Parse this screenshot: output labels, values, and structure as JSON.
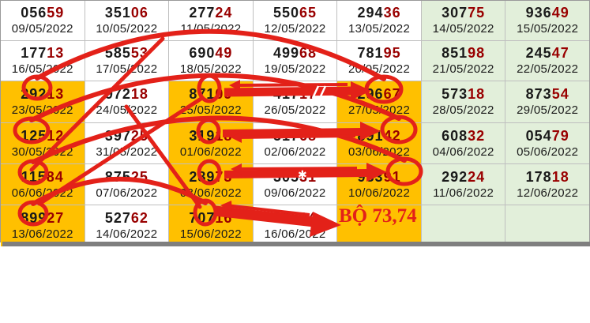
{
  "table": {
    "columns": 7,
    "rows": [
      {
        "cells": [
          {
            "num_black": "056",
            "num_red": "59",
            "date": "09/05/2022",
            "bg": "white"
          },
          {
            "num_black": "351",
            "num_red": "06",
            "date": "10/05/2022",
            "bg": "white"
          },
          {
            "num_black": "277",
            "num_red": "24",
            "date": "11/05/2022",
            "bg": "white"
          },
          {
            "num_black": "550",
            "num_red": "65",
            "date": "12/05/2022",
            "bg": "white"
          },
          {
            "num_black": "294",
            "num_red": "36",
            "date": "13/05/2022",
            "bg": "white"
          },
          {
            "num_black": "307",
            "num_red": "75",
            "date": "14/05/2022",
            "bg": "green"
          },
          {
            "num_black": "936",
            "num_red": "49",
            "date": "15/05/2022",
            "bg": "green"
          }
        ]
      },
      {
        "cells": [
          {
            "num_black": "177",
            "num_red": "13",
            "date": "16/05/2022",
            "bg": "white"
          },
          {
            "num_black": "585",
            "num_red": "53",
            "date": "17/05/2022",
            "bg": "white"
          },
          {
            "num_black": "690",
            "num_red": "49",
            "date": "18/05/2022",
            "bg": "white"
          },
          {
            "num_black": "499",
            "num_red": "68",
            "date": "19/05/2022",
            "bg": "white"
          },
          {
            "num_black": "781",
            "num_red": "95",
            "date": "20/05/2022",
            "bg": "white"
          },
          {
            "num_black": "851",
            "num_red": "98",
            "date": "21/05/2022",
            "bg": "green"
          },
          {
            "num_black": "245",
            "num_red": "47",
            "date": "22/05/2022",
            "bg": "green"
          }
        ]
      },
      {
        "cells": [
          {
            "num_black": "292",
            "num_red": "13",
            "date": "23/05/2022",
            "bg": "orange"
          },
          {
            "num_black": "972",
            "num_red": "18",
            "date": "24/05/2022",
            "bg": "white"
          },
          {
            "num_black": "871",
            "num_red": "09",
            "date": "25/05/2022",
            "bg": "orange"
          },
          {
            "num_black": "417",
            "num_red": "17",
            "date": "26/05/2022",
            "bg": "white"
          },
          {
            "num_black": "296",
            "num_red": "67",
            "date": "27/05/2022",
            "bg": "orange"
          },
          {
            "num_black": "573",
            "num_red": "18",
            "date": "28/05/2022",
            "bg": "green"
          },
          {
            "num_black": "873",
            "num_red": "54",
            "date": "29/05/2022",
            "bg": "green"
          }
        ]
      },
      {
        "cells": [
          {
            "num_black": "125",
            "num_red": "12",
            "date": "30/05/2022",
            "bg": "orange"
          },
          {
            "num_black": "397",
            "num_red": "25",
            "date": "31/05/2022",
            "bg": "white"
          },
          {
            "num_black": "319",
            "num_red": "18",
            "date": "01/06/2022",
            "bg": "orange"
          },
          {
            "num_black": "517",
            "num_red": "68",
            "date": "02/06/2022",
            "bg": "white"
          },
          {
            "num_black": "891",
            "num_red": "42",
            "date": "03/06/2022",
            "bg": "orange"
          },
          {
            "num_black": "608",
            "num_red": "32",
            "date": "04/06/2022",
            "bg": "green"
          },
          {
            "num_black": "054",
            "num_red": "79",
            "date": "05/06/2022",
            "bg": "green"
          }
        ]
      },
      {
        "cells": [
          {
            "num_black": "115",
            "num_red": "84",
            "date": "06/06/2022",
            "bg": "orange"
          },
          {
            "num_black": "875",
            "num_red": "25",
            "date": "07/06/2022",
            "bg": "white"
          },
          {
            "num_black": "289",
            "num_red": "73",
            "date": "08/06/2022",
            "bg": "orange"
          },
          {
            "num_black": "305",
            "num_red": "31",
            "date": "09/06/2022",
            "bg": "white"
          },
          {
            "num_black": "983",
            "num_red": "91",
            "date": "10/06/2022",
            "bg": "orange"
          },
          {
            "num_black": "292",
            "num_red": "24",
            "date": "11/06/2022",
            "bg": "green"
          },
          {
            "num_black": "178",
            "num_red": "18",
            "date": "12/06/2022",
            "bg": "green"
          }
        ]
      },
      {
        "cells": [
          {
            "num_black": "899",
            "num_red": "27",
            "date": "13/06/2022",
            "bg": "orange"
          },
          {
            "num_black": "527",
            "num_red": "62",
            "date": "14/06/2022",
            "bg": "white"
          },
          {
            "num_black": "707",
            "num_red": "16",
            "date": "15/06/2022",
            "bg": "orange"
          },
          {
            "num_black": "905",
            "num_red": "24",
            "date": "16/06/2022",
            "bg": "white"
          },
          {
            "bg": "orange"
          },
          {
            "bg": "green"
          },
          {
            "bg": "green"
          }
        ]
      }
    ]
  },
  "annotation": {
    "conclusion": "BỘ 73,74",
    "circled_digit_groups": [
      "29",
      "10",
      "67",
      "12",
      "91",
      "42",
      "11",
      "97",
      "91",
      "89",
      "07"
    ]
  },
  "colors": {
    "orange": "#FFC000",
    "green": "#E2EFDA",
    "grid": "#BFBFBF",
    "number_black": "#1A1A1A",
    "number_red": "#990000",
    "date": "#1A1A1A",
    "overlay_red": "#E32119",
    "bottom_bar": "#7F7F7F"
  }
}
